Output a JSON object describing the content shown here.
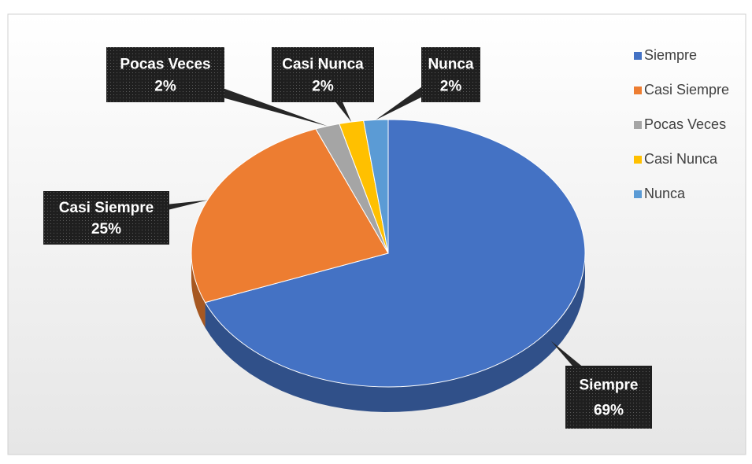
{
  "chart_data": {
    "type": "pie",
    "categories": [
      "Siempre",
      "Casi Siempre",
      "Pocas Veces",
      "Casi Nunca",
      "Nunca"
    ],
    "values": [
      69,
      25,
      2,
      2,
      2
    ],
    "value_labels": [
      "69%",
      "25%",
      "2%",
      "2%",
      "2%"
    ],
    "colors": [
      "#4472c4",
      "#ed7d31",
      "#a5a5a5",
      "#ffc000",
      "#5b9bd5"
    ],
    "legend": "right"
  }
}
